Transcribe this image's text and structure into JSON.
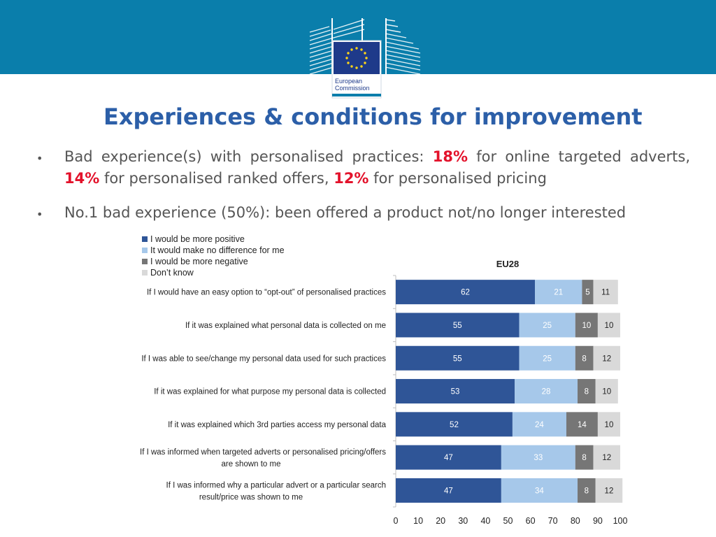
{
  "header": {
    "logo_text_line1": "European",
    "logo_text_line2": "Commission"
  },
  "title": "Experiences & conditions for improvement",
  "bullets": [
    {
      "marker": "•",
      "parts": [
        {
          "text": "Bad experience(s) with personalised practices: ",
          "highlight": false
        },
        {
          "text": "18%",
          "highlight": true
        },
        {
          "text": " for online targeted adverts, ",
          "highlight": false
        },
        {
          "text": "14%",
          "highlight": true
        },
        {
          "text": " for personalised ranked offers, ",
          "highlight": false
        },
        {
          "text": "12%",
          "highlight": true
        },
        {
          "text": " for personalised pricing",
          "highlight": false
        }
      ]
    },
    {
      "marker": "•",
      "parts": [
        {
          "text": "No.1 bad experience (50%): been offered a product not/no longer interested",
          "highlight": false
        }
      ]
    }
  ],
  "colors": {
    "banner": "#0a7eab",
    "title": "#2c5fa8",
    "highlight": "#e3122b",
    "body_text": "#555555",
    "series": [
      "#2f5597",
      "#a6c8ea",
      "#767676",
      "#d9d9d9"
    ],
    "label_text": [
      "#ffffff",
      "#ffffff",
      "#ffffff",
      "#222222"
    ]
  },
  "chart_data": {
    "type": "bar",
    "orientation": "horizontal",
    "stacked": true,
    "title": "EU28",
    "legend_position": "top-left",
    "categories": [
      "If I would have an easy option to “opt-out” of personalised practices",
      "If it was explained what personal data is collected on me",
      "If I was able to see/change my personal data used for such practices",
      "If it was explained for what purpose my personal data is collected",
      "If it was explained which 3rd parties access my personal data",
      "If I was informed when targeted adverts or personalised pricing/offers are shown to me",
      "If I was informed why a particular advert or a particular search result/price was shown to me"
    ],
    "category_lines": [
      [
        "If I would have an easy option to “opt-out” of personalised practices"
      ],
      [
        "If it was explained what personal data is collected on me"
      ],
      [
        "If I was able to see/change my personal data used for such practices"
      ],
      [
        "If it was explained for what purpose my personal data is collected"
      ],
      [
        "If it was explained which 3rd parties access my personal data"
      ],
      [
        "If I was informed when targeted adverts or personalised pricing/offers",
        "are shown to me"
      ],
      [
        "If I was informed why a particular advert or a particular search",
        "result/price was shown to me"
      ]
    ],
    "series": [
      {
        "name": "I would be more positive",
        "values": [
          62,
          55,
          55,
          53,
          52,
          47,
          47
        ]
      },
      {
        "name": "It would make no difference for me",
        "values": [
          21,
          25,
          25,
          28,
          24,
          33,
          34
        ]
      },
      {
        "name": "I would be more negative",
        "values": [
          5,
          10,
          8,
          8,
          14,
          8,
          8
        ]
      },
      {
        "name": "Don’t know",
        "values": [
          11,
          10,
          12,
          10,
          10,
          12,
          12
        ]
      }
    ],
    "xlim": [
      0,
      100
    ],
    "xticks": [
      0,
      10,
      20,
      30,
      40,
      50,
      60,
      70,
      80,
      90,
      100
    ],
    "xlabel": "",
    "ylabel": ""
  }
}
